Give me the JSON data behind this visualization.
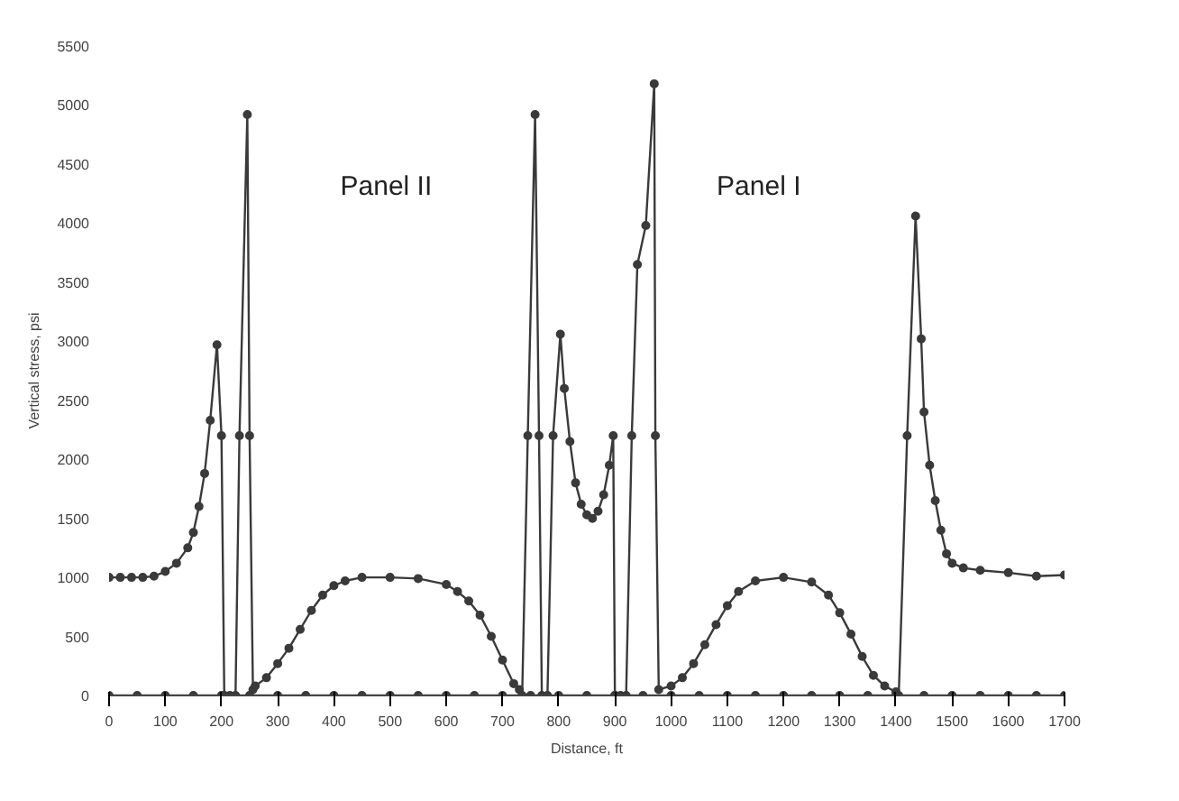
{
  "chart_data": {
    "type": "line",
    "xlabel": "Distance, ft",
    "ylabel": "Vertical stress, psi",
    "xlim": [
      0,
      1700
    ],
    "xticks": [
      0,
      100,
      200,
      300,
      400,
      500,
      600,
      700,
      800,
      900,
      1000,
      1100,
      1200,
      1300,
      1400,
      1500,
      1600,
      1700
    ],
    "ylim": [
      0,
      5500
    ],
    "yticks": [
      0,
      500,
      1000,
      1500,
      2000,
      2500,
      3000,
      3500,
      4000,
      4500,
      5000,
      5500
    ],
    "grid": false,
    "marker": "circle",
    "line_style": "solid",
    "series": [
      {
        "color": "#3a3a3a",
        "x": [
          0,
          20,
          40,
          60,
          80,
          100,
          120,
          140,
          150,
          160,
          170,
          180,
          192,
          200,
          205,
          215,
          225,
          232,
          246,
          250,
          256,
          260,
          280,
          300,
          320,
          340,
          360,
          380,
          400,
          420,
          450,
          500,
          550,
          600,
          620,
          640,
          660,
          680,
          700,
          720,
          730,
          735,
          745,
          758,
          765,
          770,
          780,
          790,
          803,
          810,
          820,
          830,
          840,
          850,
          860,
          870,
          880,
          890,
          897,
          900,
          910,
          920,
          930,
          940,
          955,
          970,
          972,
          978,
          1000,
          1020,
          1040,
          1060,
          1080,
          1100,
          1120,
          1150,
          1200,
          1250,
          1280,
          1300,
          1320,
          1340,
          1360,
          1380,
          1400,
          1405,
          1420,
          1435,
          1445,
          1450,
          1460,
          1470,
          1480,
          1490,
          1500,
          1520,
          1550,
          1600,
          1650,
          1700
        ],
        "values": [
          1000,
          1000,
          1000,
          1000,
          1010,
          1050,
          1120,
          1250,
          1380,
          1600,
          1880,
          2330,
          2970,
          2200,
          0,
          0,
          0,
          2200,
          4920,
          2200,
          50,
          80,
          150,
          270,
          400,
          560,
          720,
          850,
          930,
          970,
          1000,
          1000,
          990,
          940,
          880,
          800,
          680,
          500,
          300,
          100,
          50,
          0,
          2200,
          4920,
          2200,
          0,
          0,
          2200,
          3060,
          2600,
          2150,
          1800,
          1620,
          1530,
          1500,
          1560,
          1700,
          1950,
          2200,
          0,
          0,
          0,
          2200,
          3650,
          3980,
          5180,
          2200,
          50,
          80,
          150,
          270,
          430,
          600,
          760,
          880,
          970,
          1000,
          960,
          850,
          700,
          520,
          330,
          170,
          80,
          30,
          0,
          2200,
          4060,
          3020,
          2400,
          1950,
          1650,
          1400,
          1200,
          1120,
          1080,
          1060,
          1040,
          1010,
          1020
        ]
      },
      {
        "color": "#3a3a3a",
        "x": [
          0,
          50,
          100,
          150,
          200,
          250,
          300,
          350,
          400,
          450,
          500,
          550,
          600,
          650,
          700,
          750,
          800,
          850,
          900,
          950,
          1000,
          1050,
          1100,
          1150,
          1200,
          1250,
          1300,
          1350,
          1400,
          1450,
          1500,
          1550,
          1600,
          1650,
          1700
        ],
        "values": [
          0,
          0,
          0,
          0,
          0,
          0,
          0,
          0,
          0,
          0,
          0,
          0,
          0,
          0,
          0,
          0,
          0,
          0,
          0,
          0,
          0,
          0,
          0,
          0,
          0,
          0,
          0,
          0,
          0,
          0,
          0,
          0,
          0,
          0,
          0
        ]
      }
    ],
    "annotations": [
      "Panel II",
      "Panel I"
    ]
  }
}
